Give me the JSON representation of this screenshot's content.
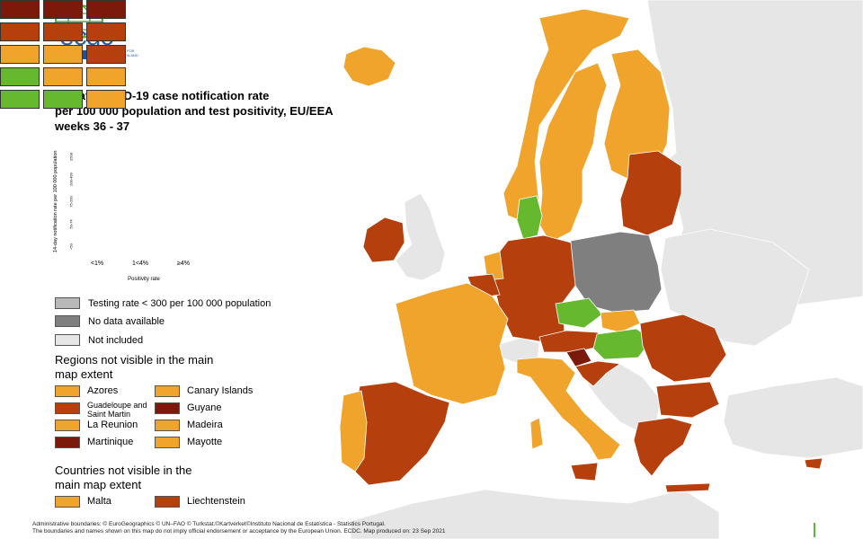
{
  "colors": {
    "dark_red": "#7b1a0a",
    "red": "#b5400e",
    "orange": "#f0a42c",
    "green": "#66b92f",
    "grey_testing": "#b8b8b8",
    "grey_nodata": "#7f7f7f",
    "grey_not_included": "#e6e6e6",
    "sea": "#ffffff"
  },
  "logo": {
    "name": "ecdc",
    "subtitle": "EUROPEAN CENTRE FOR DISEASE PREVENTION AND CONTROL"
  },
  "title": {
    "line1": "14-day COVID-19 case notification rate",
    "line2": "per 100 000 population and test positivity, EU/EEA",
    "line3": "weeks 36 - 37"
  },
  "matrix": {
    "y_axis_label": "14-day notification rate per 100 000 population",
    "row_labels": [
      "≥500",
      "200-499",
      "75-200",
      "50-74",
      "<50"
    ],
    "column_labels": [
      "<1%",
      "1<4%",
      "≥4%"
    ],
    "x_axis_label": "Positivity rate",
    "cells": [
      [
        "dark_red",
        "dark_red",
        "dark_red"
      ],
      [
        "red",
        "red",
        "red"
      ],
      [
        "orange",
        "orange",
        "red"
      ],
      [
        "green",
        "orange",
        "orange"
      ],
      [
        "green",
        "green",
        "orange"
      ]
    ]
  },
  "legend": {
    "testing_rate": "Testing rate < 300 per 100 000 population",
    "no_data": "No data available",
    "not_included": "Not included"
  },
  "regions_heading": "Regions not visible in the main map extent",
  "regions": [
    {
      "label": "Azores",
      "color": "orange"
    },
    {
      "label": "Canary Islands",
      "color": "orange"
    },
    {
      "label": "Guadeloupe and Saint Martin",
      "color": "red"
    },
    {
      "label": "Guyane",
      "color": "dark_red"
    },
    {
      "label": "La Reunion",
      "color": "orange"
    },
    {
      "label": "Madeira",
      "color": "orange"
    },
    {
      "label": "Martinique",
      "color": "dark_red"
    },
    {
      "label": "Mayotte",
      "color": "orange"
    }
  ],
  "countries_heading": "Countries not visible in the main map extent",
  "countries": [
    {
      "label": "Malta",
      "color": "orange"
    },
    {
      "label": "Liechtenstein",
      "color": "red"
    }
  ],
  "footer": {
    "line1": "Administrative boundaries: © EuroGeographics © UN–FAO © Turkstat.©Kartverket©Instituto Nacional de Estatística - Statistics Portugal.",
    "line2": "The boundaries and names shown on this map do not imply official endorsement or acceptance by the European Union. ECDC. Map produced on: 23 Sep 2021"
  },
  "map_regions": [
    {
      "name": "iceland",
      "color": "orange"
    },
    {
      "name": "ireland",
      "color": "red"
    },
    {
      "name": "uk",
      "color": "grey_not_included"
    },
    {
      "name": "norway",
      "color": "orange"
    },
    {
      "name": "sweden",
      "color": "orange"
    },
    {
      "name": "finland",
      "color": "orange"
    },
    {
      "name": "denmark",
      "color": "green"
    },
    {
      "name": "estonia-latvia-lithuania",
      "color": "red"
    },
    {
      "name": "poland",
      "color": "grey_nodata"
    },
    {
      "name": "germany",
      "color": "red"
    },
    {
      "name": "netherlands",
      "color": "orange"
    },
    {
      "name": "belgium",
      "color": "red"
    },
    {
      "name": "france",
      "color": "orange"
    },
    {
      "name": "spain",
      "color": "red"
    },
    {
      "name": "portugal",
      "color": "orange"
    },
    {
      "name": "switzerland",
      "color": "grey_not_included"
    },
    {
      "name": "italy",
      "color": "orange"
    },
    {
      "name": "austria",
      "color": "red"
    },
    {
      "name": "czechia",
      "color": "green"
    },
    {
      "name": "slovakia",
      "color": "orange"
    },
    {
      "name": "hungary",
      "color": "green"
    },
    {
      "name": "slovenia",
      "color": "dark_red"
    },
    {
      "name": "croatia",
      "color": "red"
    },
    {
      "name": "romania",
      "color": "red"
    },
    {
      "name": "bulgaria",
      "color": "red"
    },
    {
      "name": "greece",
      "color": "red"
    },
    {
      "name": "balkans-non-eu",
      "color": "grey_not_included"
    },
    {
      "name": "belarus-ukraine-russia",
      "color": "grey_not_included"
    },
    {
      "name": "turkey",
      "color": "grey_not_included"
    }
  ]
}
